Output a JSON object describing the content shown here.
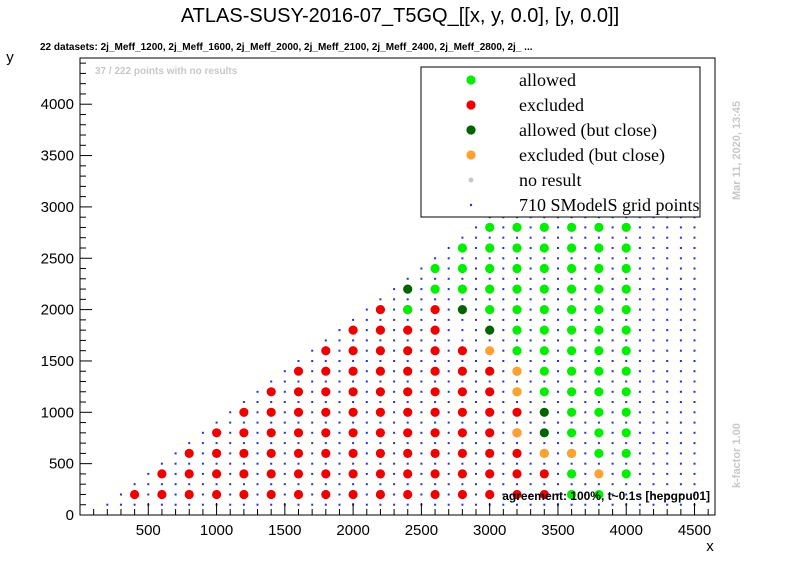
{
  "chart_data": {
    "type": "scatter",
    "title": "ATLAS-SUSY-2016-07_T5GQ_[[x, y, 0.0], [y, 0.0]]",
    "subtitle": "22 datasets: 2j_Meff_1200, 2j_Meff_1600, 2j_Meff_2000, 2j_Meff_2100, 2j_Meff_2400, 2j_Meff_2800, 2j_ ...",
    "no_results_note": "37 / 222 points with no results",
    "agreement_note": "agreement: 100%, t~0.1s [hepgpu01]",
    "side_note_top": "Mar 11, 2020, 13:45",
    "side_note_bottom": "k-factor 1.00",
    "xlabel": "x",
    "ylabel": "y",
    "xlim": [
      0,
      4650
    ],
    "ylim": [
      0,
      4450
    ],
    "xticks": [
      500,
      1000,
      1500,
      2000,
      2500,
      3000,
      3500,
      4000,
      4500
    ],
    "yticks": [
      0,
      500,
      1000,
      1500,
      2000,
      2500,
      3000,
      3500,
      4000
    ],
    "legend_position": "top-right",
    "legend": [
      {
        "label": "allowed",
        "color": "#00ee00",
        "marker": "dot"
      },
      {
        "label": "excluded",
        "color": "#ee0000",
        "marker": "dot"
      },
      {
        "label": "allowed (but close)",
        "color": "#006400",
        "marker": "dot"
      },
      {
        "label": "excluded (but close)",
        "color": "#ffa033",
        "marker": "dot"
      },
      {
        "label": "no result",
        "color": "#c8c8c8",
        "marker": "small-dot"
      },
      {
        "label": "710 SModelS grid points",
        "color": "#2233dd",
        "marker": "tiny-dot"
      }
    ],
    "series": [
      {
        "name": "excluded",
        "color": "#ee0000",
        "points": [
          [
            400,
            200
          ],
          [
            600,
            200
          ],
          [
            600,
            400
          ],
          [
            800,
            200
          ],
          [
            800,
            400
          ],
          [
            800,
            600
          ],
          [
            1000,
            200
          ],
          [
            1000,
            400
          ],
          [
            1000,
            600
          ],
          [
            1000,
            800
          ],
          [
            1200,
            200
          ],
          [
            1200,
            400
          ],
          [
            1200,
            600
          ],
          [
            1200,
            800
          ],
          [
            1200,
            1000
          ],
          [
            1400,
            200
          ],
          [
            1400,
            400
          ],
          [
            1400,
            600
          ],
          [
            1400,
            800
          ],
          [
            1400,
            1000
          ],
          [
            1400,
            1200
          ],
          [
            1600,
            200
          ],
          [
            1600,
            400
          ],
          [
            1600,
            600
          ],
          [
            1600,
            800
          ],
          [
            1600,
            1000
          ],
          [
            1600,
            1200
          ],
          [
            1600,
            1400
          ],
          [
            1800,
            200
          ],
          [
            1800,
            400
          ],
          [
            1800,
            600
          ],
          [
            1800,
            800
          ],
          [
            1800,
            1000
          ],
          [
            1800,
            1200
          ],
          [
            1800,
            1400
          ],
          [
            1800,
            1600
          ],
          [
            2000,
            200
          ],
          [
            2000,
            400
          ],
          [
            2000,
            600
          ],
          [
            2000,
            800
          ],
          [
            2000,
            1000
          ],
          [
            2000,
            1200
          ],
          [
            2000,
            1400
          ],
          [
            2000,
            1600
          ],
          [
            2000,
            1800
          ],
          [
            2200,
            200
          ],
          [
            2200,
            400
          ],
          [
            2200,
            600
          ],
          [
            2200,
            800
          ],
          [
            2200,
            1000
          ],
          [
            2200,
            1200
          ],
          [
            2200,
            1400
          ],
          [
            2200,
            1600
          ],
          [
            2200,
            1800
          ],
          [
            2200,
            2000
          ],
          [
            2400,
            200
          ],
          [
            2400,
            400
          ],
          [
            2400,
            600
          ],
          [
            2400,
            800
          ],
          [
            2400,
            1000
          ],
          [
            2400,
            1200
          ],
          [
            2400,
            1400
          ],
          [
            2400,
            1600
          ],
          [
            2400,
            1800
          ],
          [
            2400,
            2000
          ],
          [
            2600,
            200
          ],
          [
            2600,
            400
          ],
          [
            2600,
            600
          ],
          [
            2600,
            800
          ],
          [
            2600,
            1000
          ],
          [
            2600,
            1200
          ],
          [
            2600,
            1400
          ],
          [
            2600,
            1600
          ],
          [
            2600,
            1800
          ],
          [
            2600,
            2000
          ],
          [
            2800,
            200
          ],
          [
            2800,
            400
          ],
          [
            2800,
            600
          ],
          [
            2800,
            800
          ],
          [
            2800,
            1000
          ],
          [
            2800,
            1200
          ],
          [
            2800,
            1400
          ],
          [
            2800,
            1600
          ],
          [
            3000,
            200
          ],
          [
            3000,
            400
          ],
          [
            3000,
            600
          ],
          [
            3000,
            800
          ],
          [
            3000,
            1000
          ],
          [
            3000,
            1200
          ],
          [
            3000,
            1400
          ],
          [
            3200,
            200
          ],
          [
            3200,
            400
          ],
          [
            3200,
            600
          ],
          [
            3200,
            800
          ],
          [
            3200,
            1000
          ],
          [
            3400,
            200
          ],
          [
            3400,
            400
          ]
        ]
      },
      {
        "name": "allowed",
        "color": "#00ee00",
        "points": [
          [
            2400,
            2000
          ],
          [
            2600,
            2200
          ],
          [
            2600,
            2400
          ],
          [
            2800,
            2200
          ],
          [
            2800,
            2400
          ],
          [
            2800,
            2600
          ],
          [
            3000,
            2000
          ],
          [
            3000,
            2200
          ],
          [
            3000,
            2400
          ],
          [
            3000,
            2600
          ],
          [
            3000,
            2800
          ],
          [
            3200,
            1200
          ],
          [
            3200,
            1400
          ],
          [
            3200,
            1600
          ],
          [
            3200,
            1800
          ],
          [
            3200,
            2000
          ],
          [
            3200,
            2200
          ],
          [
            3200,
            2400
          ],
          [
            3200,
            2600
          ],
          [
            3200,
            2800
          ],
          [
            3200,
            3000
          ],
          [
            3400,
            600
          ],
          [
            3400,
            1200
          ],
          [
            3400,
            1400
          ],
          [
            3400,
            1600
          ],
          [
            3400,
            1800
          ],
          [
            3400,
            2000
          ],
          [
            3400,
            2200
          ],
          [
            3400,
            2400
          ],
          [
            3400,
            2600
          ],
          [
            3400,
            2800
          ],
          [
            3400,
            3000
          ],
          [
            3400,
            3200
          ],
          [
            3600,
            200
          ],
          [
            3600,
            400
          ],
          [
            3600,
            600
          ],
          [
            3600,
            800
          ],
          [
            3600,
            1000
          ],
          [
            3600,
            1200
          ],
          [
            3600,
            1400
          ],
          [
            3600,
            1600
          ],
          [
            3600,
            1800
          ],
          [
            3600,
            2000
          ],
          [
            3600,
            2200
          ],
          [
            3600,
            2400
          ],
          [
            3600,
            2600
          ],
          [
            3600,
            2800
          ],
          [
            3600,
            3000
          ],
          [
            3600,
            3200
          ],
          [
            3600,
            3400
          ],
          [
            3800,
            200
          ],
          [
            3800,
            600
          ],
          [
            3800,
            800
          ],
          [
            3800,
            1000
          ],
          [
            3800,
            1200
          ],
          [
            3800,
            1400
          ],
          [
            3800,
            1600
          ],
          [
            3800,
            1800
          ],
          [
            3800,
            2000
          ],
          [
            3800,
            2200
          ],
          [
            3800,
            2400
          ],
          [
            3800,
            2600
          ],
          [
            3800,
            2800
          ],
          [
            3800,
            3000
          ],
          [
            3800,
            3200
          ],
          [
            3800,
            3400
          ],
          [
            3800,
            3600
          ],
          [
            4000,
            400
          ],
          [
            4000,
            600
          ],
          [
            4000,
            800
          ],
          [
            4000,
            1000
          ],
          [
            4000,
            1200
          ],
          [
            4000,
            1400
          ],
          [
            4000,
            1600
          ],
          [
            4000,
            1800
          ],
          [
            4000,
            2000
          ],
          [
            4000,
            2200
          ],
          [
            4000,
            2400
          ],
          [
            4000,
            2600
          ],
          [
            4000,
            2800
          ],
          [
            4000,
            3000
          ],
          [
            4000,
            3200
          ],
          [
            4000,
            3400
          ],
          [
            4000,
            3600
          ],
          [
            4000,
            3800
          ]
        ]
      },
      {
        "name": "allowed (but close)",
        "color": "#006400",
        "points": [
          [
            2400,
            2200
          ],
          [
            2800,
            2000
          ],
          [
            3000,
            1800
          ],
          [
            3400,
            1000
          ],
          [
            3400,
            800
          ]
        ]
      },
      {
        "name": "excluded (but close)",
        "color": "#ffa033",
        "points": [
          [
            3000,
            1600
          ],
          [
            3200,
            1400
          ],
          [
            3200,
            1200
          ],
          [
            3200,
            800
          ],
          [
            3400,
            600
          ],
          [
            3600,
            600
          ],
          [
            3800,
            400
          ]
        ]
      }
    ]
  }
}
